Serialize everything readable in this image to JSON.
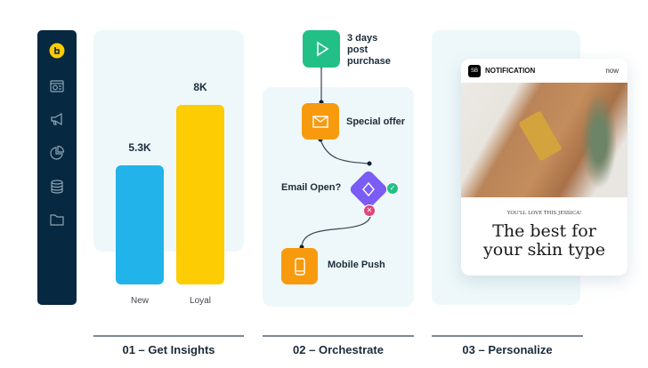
{
  "colors": {
    "sidebar": "#062840",
    "panel": "#eef8fa",
    "new": "#22b3ea",
    "loyal": "#fdcc02",
    "trigger": "#22c087",
    "action": "#f89a0e",
    "condition": "#7b5cf5",
    "yes": "#22c087",
    "no": "#e0457b"
  },
  "sidebar": {
    "items": [
      {
        "icon": "logo-icon"
      },
      {
        "icon": "dashboard-icon"
      },
      {
        "icon": "megaphone-icon"
      },
      {
        "icon": "pie-chart-icon"
      },
      {
        "icon": "database-icon"
      },
      {
        "icon": "folder-icon"
      }
    ]
  },
  "chart_data": {
    "type": "bar",
    "categories": [
      "New",
      "Loyal"
    ],
    "values": [
      5300,
      8000
    ],
    "data_labels": [
      "5.3K",
      "8K"
    ],
    "ylim": [
      0,
      9000
    ]
  },
  "steps": [
    "01 – Get Insights",
    "02 – Orchestrate",
    "03 – Personalize"
  ],
  "flow": {
    "trigger": "3 days post purchase",
    "trigger_lines": [
      "3 days",
      "post",
      "purchase"
    ],
    "action1": "Special offer",
    "condition": "Email Open?",
    "action2": "Mobile Push"
  },
  "notification": {
    "logo": "SB",
    "title": "NOTIFICATION",
    "time": "now",
    "eyebrow": "YOU'LL LOVE THIS JESSICA!",
    "headline_lines": [
      "The best for",
      "your skin type"
    ]
  }
}
